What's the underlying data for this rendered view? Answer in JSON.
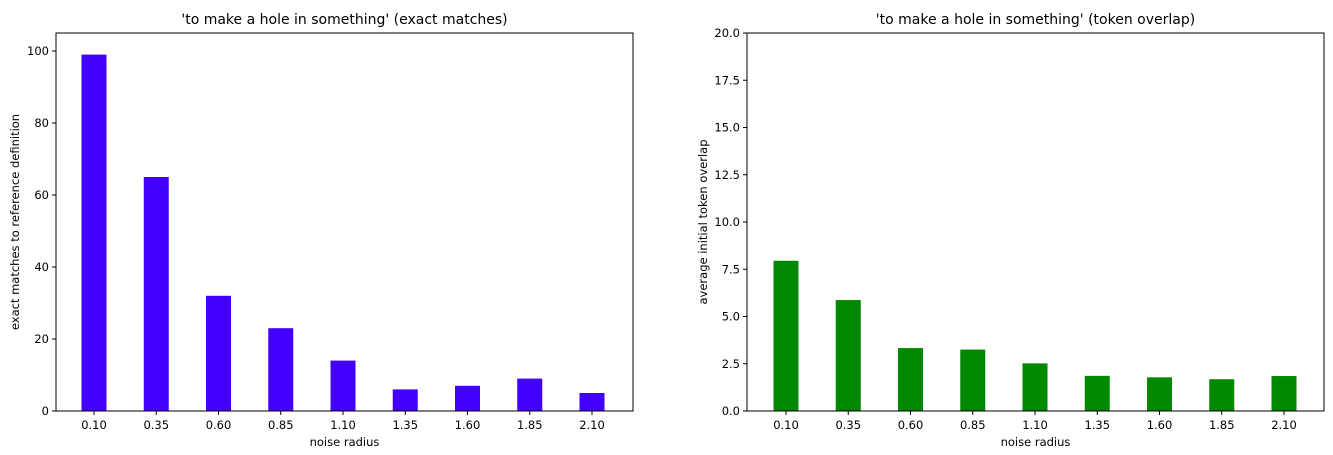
{
  "chart_data": [
    {
      "type": "bar",
      "title": "'to make a hole in something' (exact matches)",
      "xlabel": "noise radius",
      "ylabel": "exact matches to reference definition",
      "categories": [
        "0.10",
        "0.35",
        "0.60",
        "0.85",
        "1.10",
        "1.35",
        "1.60",
        "1.85",
        "2.10"
      ],
      "values": [
        99,
        65,
        32,
        23,
        14,
        6,
        7,
        9,
        5
      ],
      "ylim": [
        0,
        105
      ],
      "yticks": [
        0,
        20,
        40,
        60,
        80,
        100
      ],
      "ytick_labels": [
        "0",
        "20",
        "40",
        "60",
        "80",
        "100"
      ],
      "color": "#4400ff",
      "grid": false
    },
    {
      "type": "bar",
      "title": "'to make a hole in something' (token overlap)",
      "xlabel": "noise radius",
      "ylabel": "average initial token overlap",
      "categories": [
        "0.10",
        "0.35",
        "0.60",
        "0.85",
        "1.10",
        "1.35",
        "1.60",
        "1.85",
        "2.10"
      ],
      "values": [
        7.95,
        5.87,
        3.33,
        3.25,
        2.52,
        1.86,
        1.78,
        1.68,
        1.85
      ],
      "ylim": [
        0,
        20
      ],
      "yticks": [
        0,
        2.5,
        5,
        7.5,
        10,
        12.5,
        15,
        17.5,
        20
      ],
      "ytick_labels": [
        "0.0",
        "2.5",
        "5.0",
        "7.5",
        "10.0",
        "12.5",
        "15.0",
        "17.5",
        "20.0"
      ],
      "color": "#008800",
      "grid": false
    }
  ]
}
